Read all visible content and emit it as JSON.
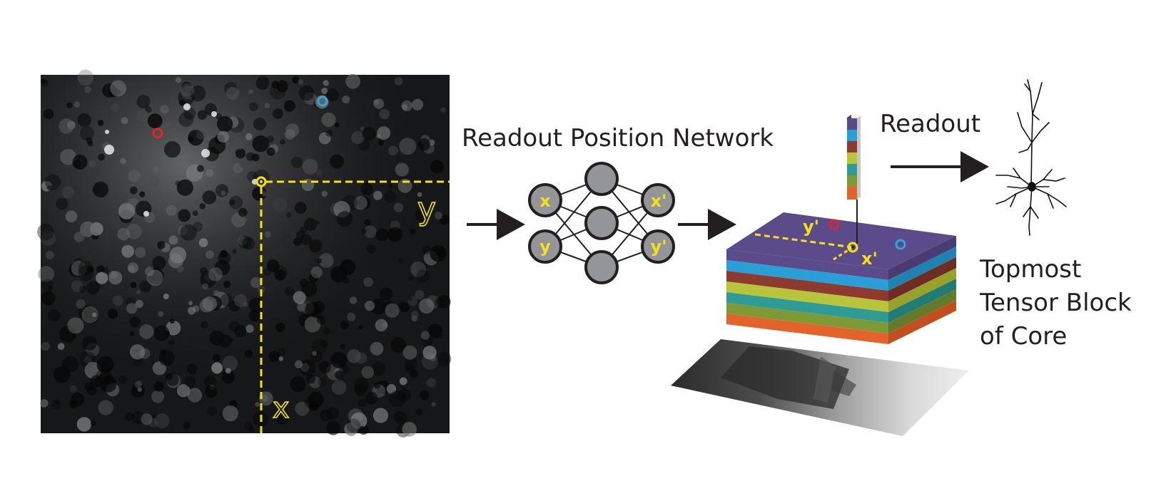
{
  "labels": {
    "readout_position_network": "Readout Position Network",
    "readout": "Readout",
    "topmost_tensor_block": [
      "Topmost",
      "Tensor Block",
      "of Core"
    ]
  },
  "image_axes": {
    "x": "x",
    "y": "y"
  },
  "network": {
    "input_nodes": [
      "x",
      "y"
    ],
    "output_nodes": [
      "x'",
      "y'"
    ]
  },
  "tensor_block": {
    "x_label": "x'",
    "y_label": "y'"
  },
  "colors": {
    "highlight_yellow": "#f6e01a",
    "marker_red": "#e0262b",
    "marker_blue": "#2fa4dd",
    "node_fill": "#939598",
    "arrow": "#231f20",
    "layer_purple": "#5b4b8a",
    "layer_blue": "#2a9fd6",
    "layer_brown": "#8c3b2e",
    "layer_lime": "#b8c43a",
    "layer_teal": "#2e9c95",
    "layer_olive": "#7d9a37",
    "layer_orange": "#e3642a"
  }
}
